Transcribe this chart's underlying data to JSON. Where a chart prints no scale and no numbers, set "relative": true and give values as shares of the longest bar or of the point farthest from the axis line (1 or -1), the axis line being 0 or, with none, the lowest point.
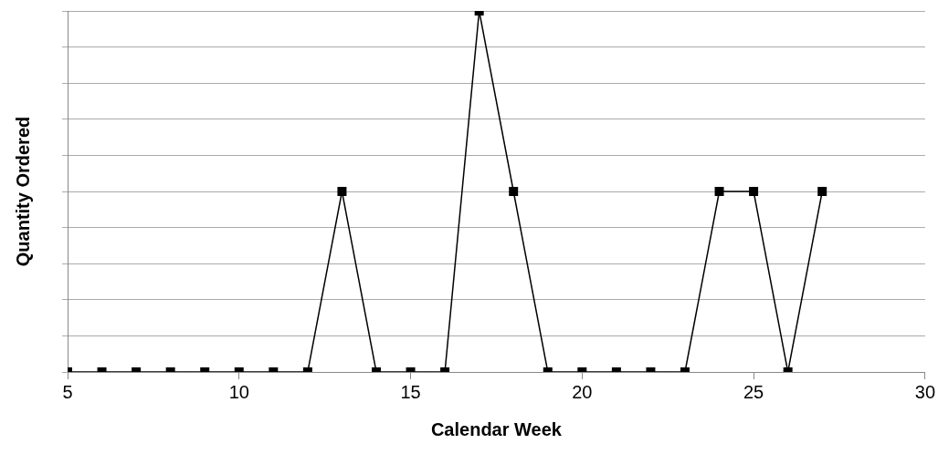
{
  "chart_data": {
    "type": "line",
    "xlabel": "Calendar Week",
    "ylabel": "Quantity Ordered",
    "relative": true,
    "x": [
      5,
      6,
      7,
      8,
      9,
      10,
      11,
      12,
      13,
      14,
      15,
      16,
      17,
      18,
      19,
      20,
      21,
      22,
      23,
      24,
      25,
      26,
      27
    ],
    "series": [
      {
        "color": "#000000",
        "values": [
          0,
          0,
          0,
          0,
          0,
          0,
          0,
          0,
          0.5,
          0,
          0,
          0,
          1,
          0.5,
          0,
          0,
          0,
          0,
          0,
          0.5,
          0.5,
          0,
          0.5
        ]
      }
    ],
    "xlim": [
      5,
      30
    ],
    "xticks": [
      5,
      10,
      15,
      20,
      25,
      30
    ],
    "grid": "y",
    "legend": false,
    "marker": "square",
    "line_style": "solid"
  }
}
